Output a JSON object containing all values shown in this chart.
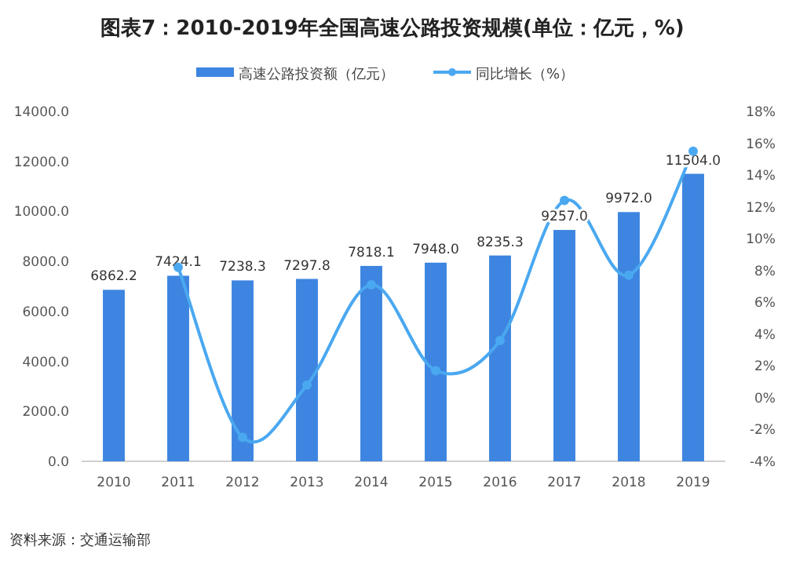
{
  "chart_data": {
    "type": "bar",
    "title": "图表7：2010-2019年全国高速公路投资规模(单位：亿元，%)",
    "categories": [
      "2010",
      "2011",
      "2012",
      "2013",
      "2014",
      "2015",
      "2016",
      "2017",
      "2018",
      "2019"
    ],
    "series": [
      {
        "name": "高速公路投资额（亿元）",
        "color": "#3d85e0",
        "values": [
          6862.2,
          7424.1,
          7238.3,
          7297.8,
          7818.1,
          7948.0,
          8235.3,
          9257.0,
          9972.0,
          11504.0
        ],
        "value_labels": [
          "6862.2",
          "7424.1",
          "7238.3",
          "7297.8",
          "7818.1",
          "7948.0",
          "8235.3",
          "9257.0",
          "9972.0",
          "11504.0"
        ]
      },
      {
        "name": "同比增长（%）",
        "type": "line",
        "axis": "y2",
        "color": "#4aa8f0",
        "marker": "circle",
        "values": [
          null,
          8.2,
          -2.5,
          0.8,
          7.1,
          1.7,
          3.6,
          12.4,
          7.7,
          15.5
        ]
      }
    ],
    "ylim": [
      0,
      14000
    ],
    "yticks": [
      {
        "value": 0,
        "label": "0.0"
      },
      {
        "value": 2000,
        "label": "2000.0"
      },
      {
        "value": 4000,
        "label": "4000.0"
      },
      {
        "value": 6000,
        "label": "6000.0"
      },
      {
        "value": 8000,
        "label": "8000.0"
      },
      {
        "value": 10000,
        "label": "10000.0"
      },
      {
        "value": 12000,
        "label": "12000.0"
      },
      {
        "value": 14000,
        "label": "14000.0"
      }
    ],
    "y2lim": [
      -4,
      18
    ],
    "y2ticks": [
      {
        "value": -4,
        "label": "-4%"
      },
      {
        "value": -2,
        "label": "-2%"
      },
      {
        "value": 0,
        "label": "0%"
      },
      {
        "value": 2,
        "label": "2%"
      },
      {
        "value": 4,
        "label": "4%"
      },
      {
        "value": 6,
        "label": "6%"
      },
      {
        "value": 8,
        "label": "8%"
      },
      {
        "value": 10,
        "label": "10%"
      },
      {
        "value": 12,
        "label": "12%"
      },
      {
        "value": 14,
        "label": "14%"
      },
      {
        "value": 16,
        "label": "16%"
      },
      {
        "value": 18,
        "label": "18%"
      }
    ],
    "grid": false,
    "legend": "top",
    "annotations": [
      "资料来源：交通运输部"
    ]
  }
}
